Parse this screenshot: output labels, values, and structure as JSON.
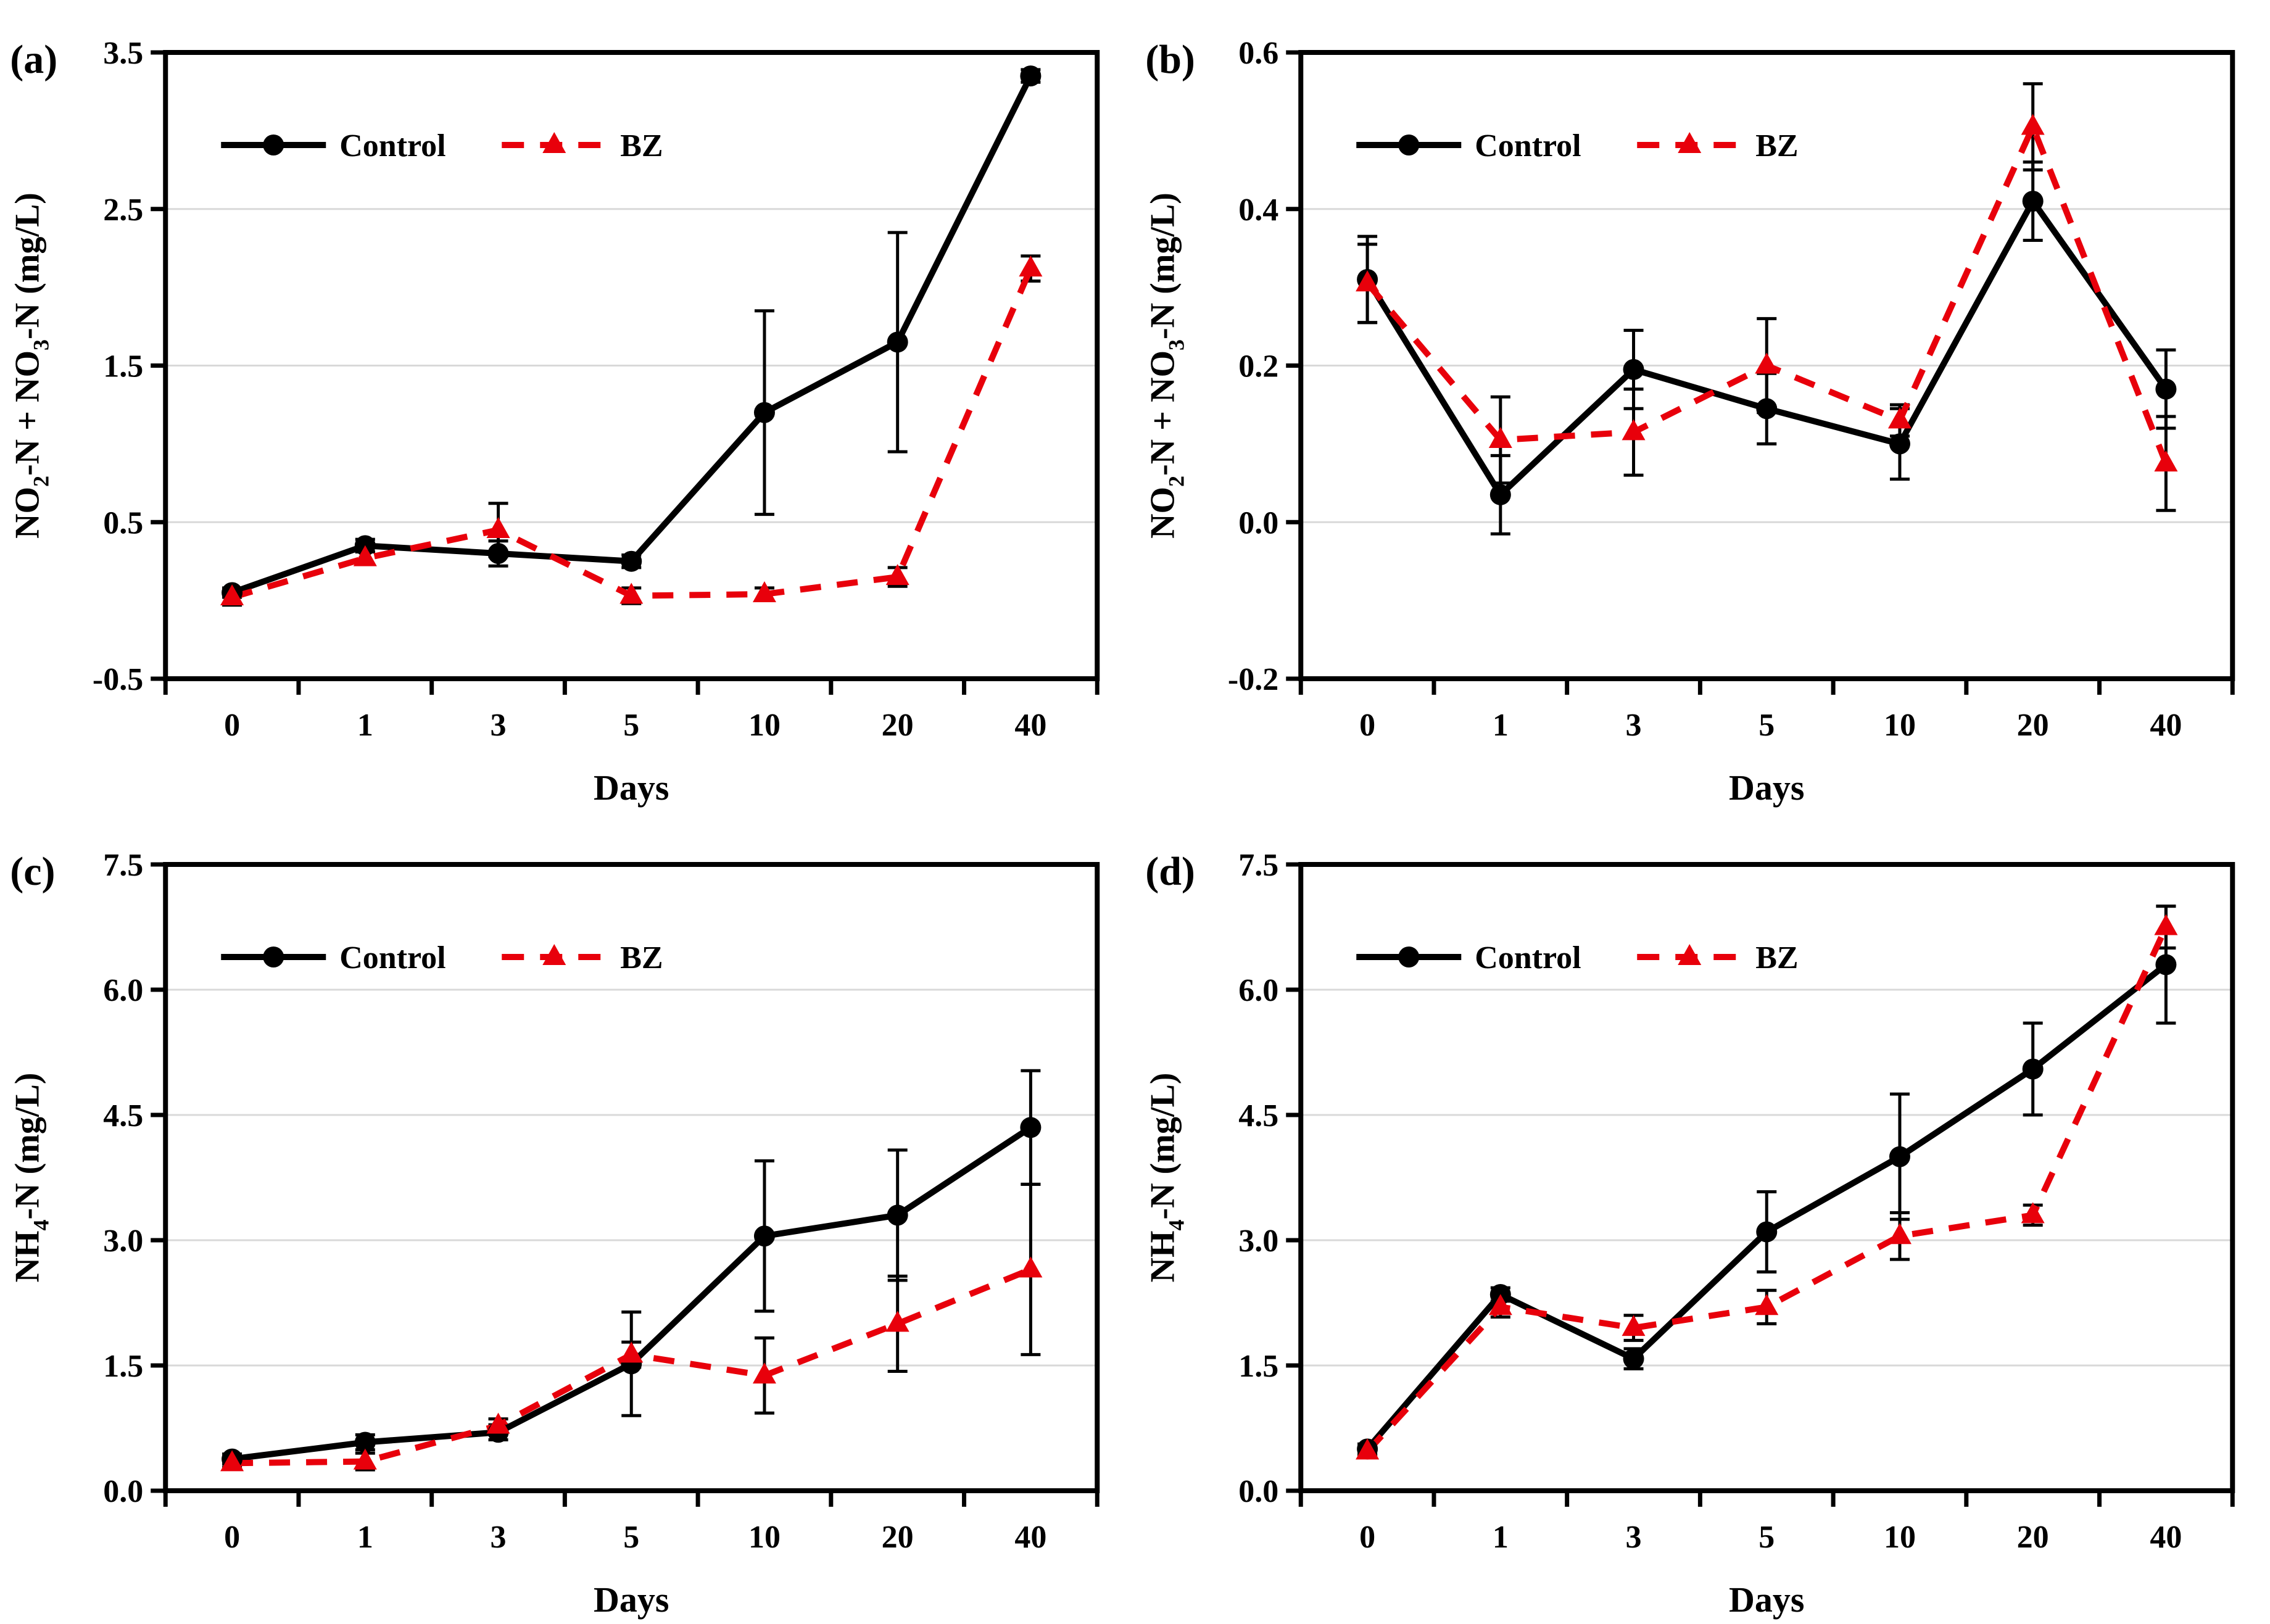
{
  "page": {
    "background": "#ffffff"
  },
  "colors": {
    "control": "#000000",
    "bz": "#e8000b",
    "grid": "#d9d9d9",
    "frame": "#000000",
    "error_bar": "#000000",
    "text": "#000000"
  },
  "legend": {
    "entries": [
      {
        "label": "Control"
      },
      {
        "label": "BZ"
      }
    ]
  },
  "xlabel": "Days",
  "categories": [
    "0",
    "1",
    "3",
    "5",
    "10",
    "20",
    "40"
  ],
  "chart_data": [
    {
      "type": "line",
      "panel_label": "(a)",
      "ylabel": "NO2-N + NO3-N (mg/L)",
      "ylabel_parts": [
        [
          "NO"
        ],
        [
          "2",
          "sub"
        ],
        [
          "-N + NO"
        ],
        [
          "3",
          "sub"
        ],
        [
          "-N (mg/L)"
        ]
      ],
      "xlabel": "Days",
      "x": [
        "0",
        "1",
        "3",
        "5",
        "10",
        "20",
        "40"
      ],
      "ylim": [
        -0.5,
        3.5
      ],
      "yticks": [
        -0.5,
        0.5,
        1.5,
        2.5,
        3.5
      ],
      "ytick_labels": [
        "-0.5",
        "0.5",
        "1.5",
        "2.5",
        "3.5"
      ],
      "grid": "horizontal-interior",
      "legend_position": "top-left-inside",
      "series": [
        {
          "name": "Control",
          "color_key": "control",
          "marker": "circle",
          "dash": false,
          "values": [
            0.05,
            0.35,
            0.3,
            0.25,
            1.2,
            1.65,
            3.35
          ],
          "errors": [
            0.03,
            0.04,
            0.08,
            0.04,
            0.65,
            0.7,
            0.04
          ]
        },
        {
          "name": "BZ",
          "color_key": "bz",
          "marker": "triangle",
          "dash": true,
          "values": [
            0.02,
            0.27,
            0.45,
            0.03,
            0.04,
            0.15,
            2.12
          ],
          "errors": [
            0.05,
            0.04,
            0.17,
            0.05,
            0.04,
            0.06,
            0.08
          ]
        }
      ]
    },
    {
      "type": "line",
      "panel_label": "(b)",
      "ylabel": "NO2-N + NO3-N (mg/L)",
      "ylabel_parts": [
        [
          "NO"
        ],
        [
          "2",
          "sub"
        ],
        [
          "-N + NO"
        ],
        [
          "3",
          "sub"
        ],
        [
          "-N (mg/L)"
        ]
      ],
      "xlabel": "Days",
      "x": [
        "0",
        "1",
        "3",
        "5",
        "10",
        "20",
        "40"
      ],
      "ylim": [
        -0.2,
        0.6
      ],
      "yticks": [
        -0.2,
        0.0,
        0.2,
        0.4,
        0.6
      ],
      "ytick_labels": [
        "-0.2",
        "0.0",
        "0.2",
        "0.4",
        "0.6"
      ],
      "grid": "horizontal-interior",
      "legend_position": "top-left-inside",
      "series": [
        {
          "name": "Control",
          "color_key": "control",
          "marker": "circle",
          "dash": false,
          "values": [
            0.31,
            0.035,
            0.195,
            0.145,
            0.1,
            0.41,
            0.17
          ],
          "errors": [
            0.055,
            0.05,
            0.05,
            0.045,
            0.045,
            0.05,
            0.05
          ]
        },
        {
          "name": "BZ",
          "color_key": "bz",
          "marker": "triangle",
          "dash": true,
          "values": [
            0.305,
            0.105,
            0.115,
            0.2,
            0.13,
            0.505,
            0.075
          ],
          "errors": [
            0.05,
            0.055,
            0.055,
            0.06,
            0.02,
            0.055,
            0.06
          ]
        }
      ]
    },
    {
      "type": "line",
      "panel_label": "(c)",
      "ylabel": "NH4-N (mg/L)",
      "ylabel_parts": [
        [
          "NH"
        ],
        [
          "4",
          "sub"
        ],
        [
          "-N (mg/L)"
        ]
      ],
      "xlabel": "Days",
      "x": [
        "0",
        "1",
        "3",
        "5",
        "10",
        "20",
        "40"
      ],
      "ylim": [
        0.0,
        7.5
      ],
      "yticks": [
        0.0,
        1.5,
        3.0,
        4.5,
        6.0,
        7.5
      ],
      "ytick_labels": [
        "0.0",
        "1.5",
        "3.0",
        "4.5",
        "6.0",
        "7.5"
      ],
      "grid": "horizontal-interior",
      "legend_position": "top-left-inside",
      "series": [
        {
          "name": "Control",
          "color_key": "control",
          "marker": "circle",
          "dash": false,
          "values": [
            0.38,
            0.58,
            0.7,
            1.52,
            3.05,
            3.3,
            4.35
          ],
          "errors": [
            0.06,
            0.09,
            0.09,
            0.62,
            0.9,
            0.78,
            0.68
          ]
        },
        {
          "name": "BZ",
          "color_key": "bz",
          "marker": "triangle",
          "dash": true,
          "values": [
            0.33,
            0.35,
            0.78,
            1.63,
            1.38,
            2.0,
            2.65
          ],
          "errors": [
            0.05,
            0.1,
            0.08,
            0.15,
            0.45,
            0.57,
            1.02
          ]
        }
      ]
    },
    {
      "type": "line",
      "panel_label": "(d)",
      "ylabel": "NH4-N (mg/L)",
      "ylabel_parts": [
        [
          "NH"
        ],
        [
          "4",
          "sub"
        ],
        [
          "-N (mg/L)"
        ]
      ],
      "xlabel": "Days",
      "x": [
        "0",
        "1",
        "3",
        "5",
        "10",
        "20",
        "40"
      ],
      "ylim": [
        0.0,
        7.5
      ],
      "yticks": [
        0.0,
        1.5,
        3.0,
        4.5,
        6.0,
        7.5
      ],
      "ytick_labels": [
        "0.0",
        "1.5",
        "3.0",
        "4.5",
        "6.0",
        "7.5"
      ],
      "grid": "horizontal-interior",
      "legend_position": "top-left-inside",
      "series": [
        {
          "name": "Control",
          "color_key": "control",
          "marker": "circle",
          "dash": false,
          "values": [
            0.5,
            2.35,
            1.58,
            3.1,
            4.0,
            5.05,
            6.3
          ],
          "errors": [
            0.06,
            0.08,
            0.12,
            0.48,
            0.75,
            0.55,
            0.7
          ]
        },
        {
          "name": "BZ",
          "color_key": "bz",
          "marker": "triangle",
          "dash": true,
          "values": [
            0.47,
            2.2,
            1.95,
            2.2,
            3.05,
            3.3,
            6.75
          ],
          "errors": [
            0.05,
            0.12,
            0.15,
            0.2,
            0.28,
            0.12,
            0.25
          ]
        }
      ]
    }
  ]
}
